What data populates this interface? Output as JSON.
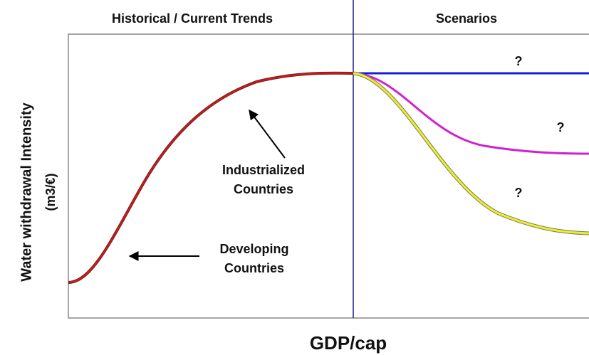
{
  "header": {
    "left": "Historical / Current Trends",
    "right": "Scenarios"
  },
  "y_axis": {
    "title": "Water withdrawal Intensity",
    "unit": "(m3/€)"
  },
  "x_axis": {
    "title": "GDP/cap"
  },
  "annotations": {
    "industrialized": [
      "Industrialized",
      "Countries"
    ],
    "developing": [
      "Developing",
      "Countries"
    ]
  },
  "scenario_marks": [
    "?",
    "?",
    "?"
  ]
}
